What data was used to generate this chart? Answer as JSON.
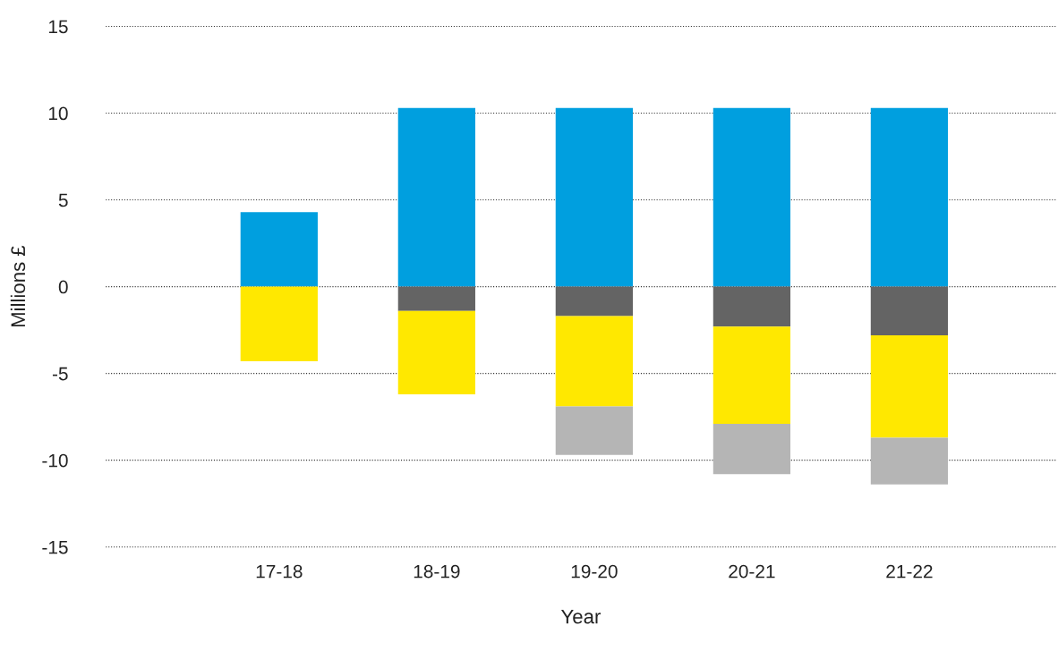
{
  "chart_data": {
    "type": "bar",
    "stacked": true,
    "xlabel": "Year",
    "ylabel": "Millions £",
    "categories": [
      "17-18",
      "18-19",
      "19-20",
      "20-21",
      "21-22"
    ],
    "series": [
      {
        "color": "#009fdf",
        "values": [
          4.3,
          10.3,
          10.3,
          10.3,
          10.3
        ]
      },
      {
        "color": "#646464",
        "values": [
          null,
          -1.4,
          -1.7,
          -2.3,
          -2.8
        ]
      },
      {
        "color": "#ffe800",
        "values": [
          -4.3,
          -4.8,
          -5.2,
          -5.6,
          -5.9
        ]
      },
      {
        "color": "#b5b5b5",
        "values": [
          null,
          null,
          -2.8,
          -2.9,
          -2.7
        ]
      }
    ],
    "ylim": [
      -15,
      15
    ],
    "yticks": [
      -15,
      -10,
      -5,
      0,
      5,
      10,
      15
    ],
    "grid": "y",
    "legend": false
  }
}
